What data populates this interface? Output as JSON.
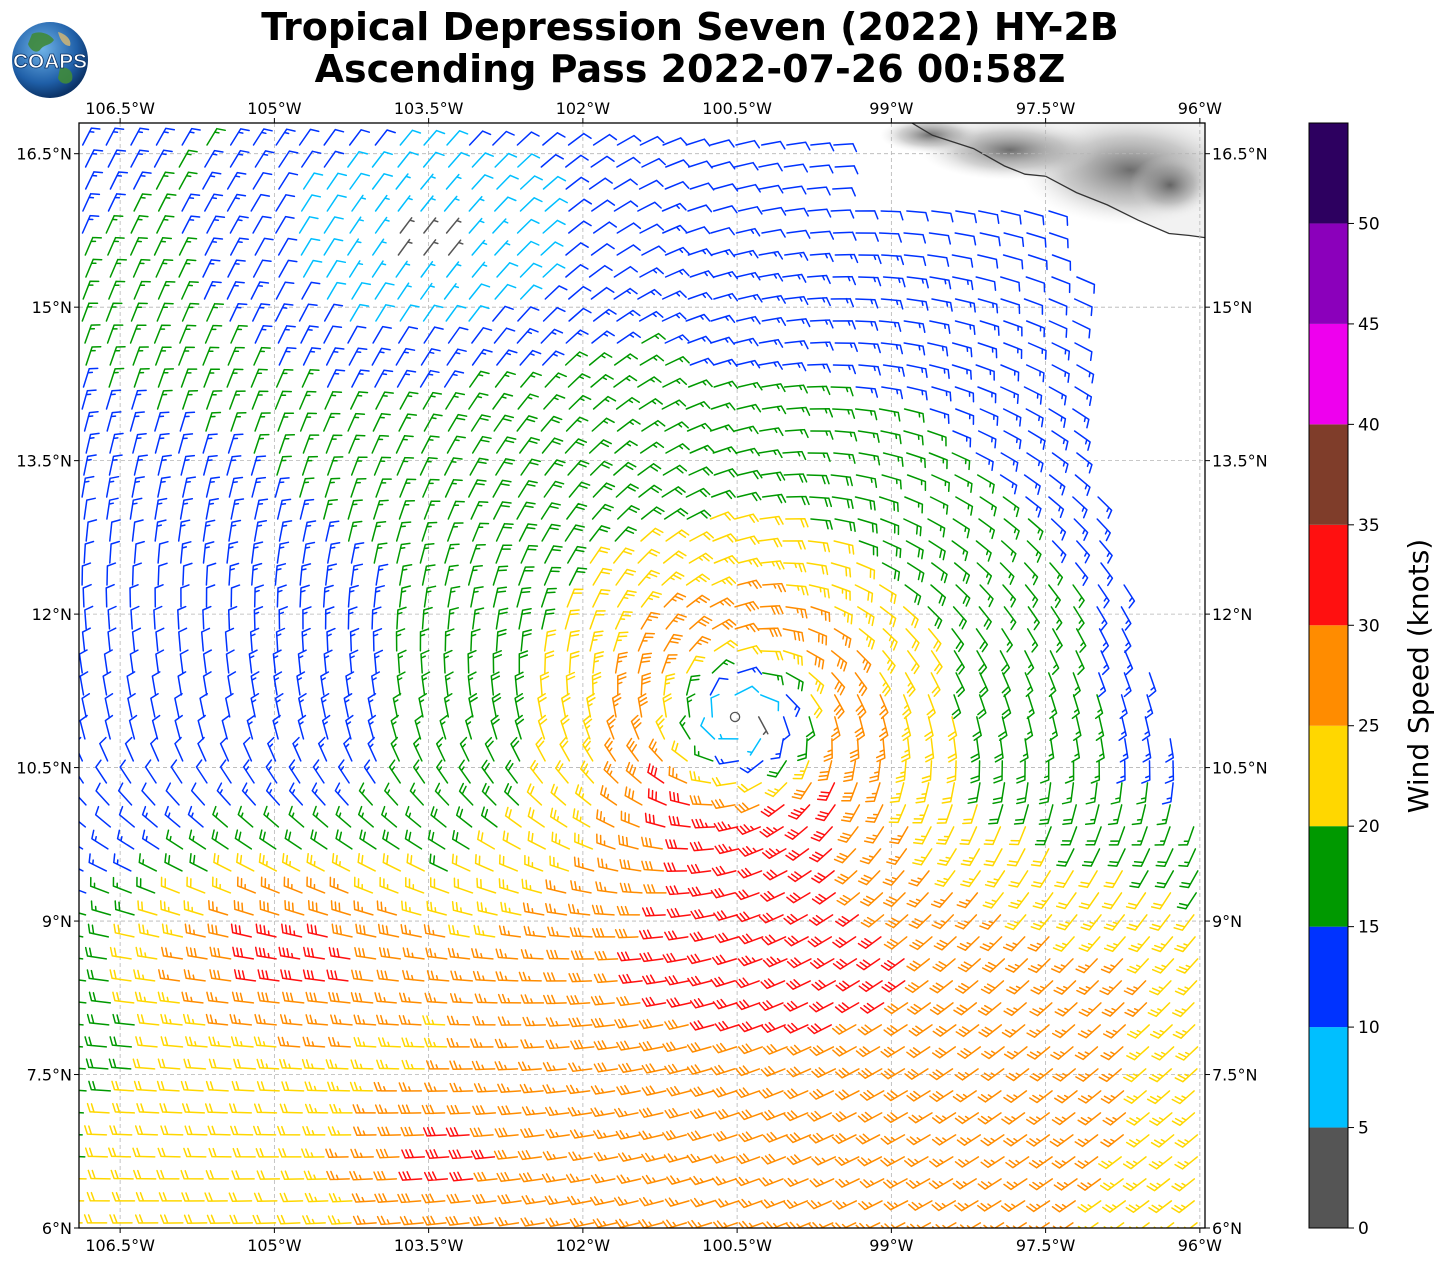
{
  "title": {
    "line1": "Tropical Depression Seven (2022) HY-2B",
    "line2": "Ascending Pass 2022-07-26 00:58Z"
  },
  "logo": {
    "text": "COAPS",
    "icon": "globe-logo-icon"
  },
  "map": {
    "lon_range": [
      -106.9,
      -95.95
    ],
    "lat_range": [
      6.0,
      16.8
    ],
    "lon_ticks": [
      {
        "value": -106.5,
        "label": "106.5°W"
      },
      {
        "value": -105.0,
        "label": "105°W"
      },
      {
        "value": -103.5,
        "label": "103.5°W"
      },
      {
        "value": -102.0,
        "label": "102°W"
      },
      {
        "value": -100.5,
        "label": "100.5°W"
      },
      {
        "value": -99.0,
        "label": "99°W"
      },
      {
        "value": -97.5,
        "label": "97.5°W"
      },
      {
        "value": -96.0,
        "label": "96°W"
      }
    ],
    "lat_ticks": [
      {
        "value": 6.0,
        "label": "6°N"
      },
      {
        "value": 7.5,
        "label": "7.5°N"
      },
      {
        "value": 9.0,
        "label": "9°N"
      },
      {
        "value": 10.5,
        "label": "10.5°N"
      },
      {
        "value": 12.0,
        "label": "12°N"
      },
      {
        "value": 13.5,
        "label": "13.5°N"
      },
      {
        "value": 15.0,
        "label": "15°N"
      },
      {
        "value": 16.5,
        "label": "16.5°N"
      }
    ],
    "coastline": [
      [
        -98.8,
        16.8
      ],
      [
        -98.6,
        16.68
      ],
      [
        -98.2,
        16.55
      ],
      [
        -97.9,
        16.38
      ],
      [
        -97.7,
        16.3
      ],
      [
        -97.5,
        16.28
      ],
      [
        -97.2,
        16.12
      ],
      [
        -96.9,
        16.0
      ],
      [
        -96.6,
        15.85
      ],
      [
        -96.3,
        15.72
      ],
      [
        -96.1,
        15.7
      ],
      [
        -95.95,
        15.68
      ]
    ],
    "storm_center": {
      "lon": -100.45,
      "lat": 10.95
    }
  },
  "colorbar": {
    "label": "Wind Speed (knots)",
    "range": [
      0,
      55
    ],
    "bounds": [
      0,
      5,
      10,
      15,
      20,
      25,
      30,
      35,
      40,
      45,
      50,
      55
    ],
    "colors": [
      "#555555",
      "#00bfff",
      "#0033ff",
      "#009900",
      "#ffd700",
      "#ff8c00",
      "#ff1010",
      "#7f3d2a",
      "#ee00ee",
      "#8b00bb",
      "#2d0060"
    ],
    "tick_values": [
      0,
      5,
      10,
      15,
      20,
      25,
      30,
      35,
      40,
      45,
      50
    ],
    "tick_labels": [
      "0",
      "5",
      "10",
      "15",
      "20",
      "25",
      "30",
      "35",
      "40",
      "45",
      "50"
    ]
  }
}
